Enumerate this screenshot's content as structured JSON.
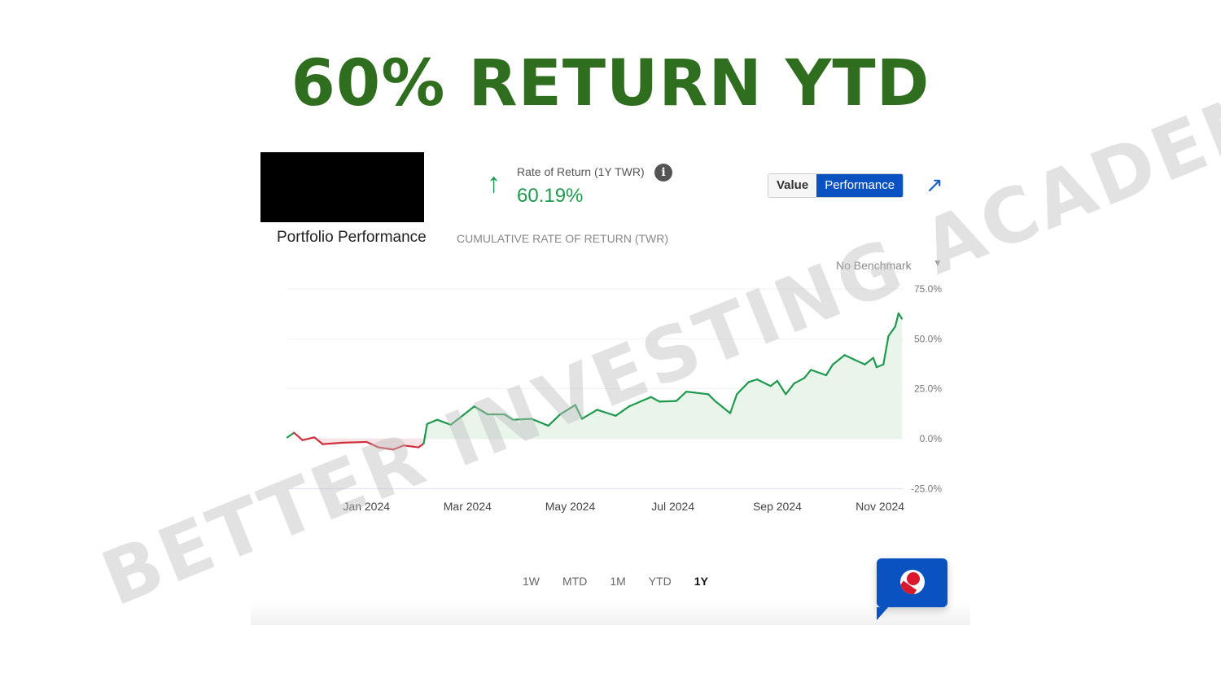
{
  "headline": "60% RETURN YTD",
  "header": {
    "rate_label": "Rate of Return (1Y TWR)",
    "info_icon": "i",
    "rate_value": "60.19%",
    "up_arrow": "↑",
    "toggle": {
      "value": "Value",
      "performance": "Performance",
      "active": "Performance"
    },
    "expand_icon": "↗"
  },
  "section": {
    "title": "Portfolio Performance",
    "subtitle": "CUMULATIVE RATE OF RETURN (TWR)",
    "benchmark": "No Benchmark",
    "benchmark_caret": "▼"
  },
  "ranges": [
    {
      "label": "1W",
      "active": false
    },
    {
      "label": "MTD",
      "active": false
    },
    {
      "label": "1M",
      "active": false
    },
    {
      "label": "YTD",
      "active": false
    },
    {
      "label": "1Y",
      "active": true
    }
  ],
  "watermark": "BETTER INVESTING ACADEMY",
  "colors": {
    "headline": "#2f6e1e",
    "positive": "#1f9a4d",
    "negative": "#d0313d",
    "accent": "#0a52c0"
  },
  "chart_data": {
    "type": "area",
    "title": "",
    "xlabel": "",
    "ylabel": "",
    "grid": true,
    "xlim": [
      "2023-11-15",
      "2024-11-14"
    ],
    "ylim": [
      -25,
      75
    ],
    "yticks": [
      75,
      50,
      25,
      0,
      -25
    ],
    "ytick_labels": [
      "75.0%",
      "50.0%",
      "25.0%",
      "0.0%",
      "-25.0%"
    ],
    "xticks": [
      "2024-01-01",
      "2024-03-01",
      "2024-05-01",
      "2024-07-01",
      "2024-09-01",
      "2024-11-01"
    ],
    "xtick_labels": [
      "Jan 2024",
      "Mar 2024",
      "May 2024",
      "Jul 2024",
      "Sep 2024",
      "Nov 2024"
    ],
    "series": [
      {
        "points": [
          [
            "2023-11-15",
            0.7
          ],
          [
            "2023-11-19",
            3.0
          ],
          [
            "2023-11-24",
            -0.7
          ],
          [
            "2023-12-01",
            0.7
          ],
          [
            "2023-12-06",
            -2.7
          ],
          [
            "2023-12-18",
            -2.0
          ],
          [
            "2024-01-01",
            -1.6
          ],
          [
            "2024-01-08",
            -4.3
          ],
          [
            "2024-01-17",
            -5.4
          ],
          [
            "2024-01-23",
            -3.4
          ],
          [
            "2024-02-01",
            -4.3
          ],
          [
            "2024-02-04",
            -2.4
          ],
          [
            "2024-02-06",
            7.4
          ],
          [
            "2024-02-12",
            9.5
          ],
          [
            "2024-02-20",
            7.0
          ],
          [
            "2024-02-27",
            11.5
          ],
          [
            "2024-03-05",
            16.2
          ],
          [
            "2024-03-13",
            12.2
          ],
          [
            "2024-03-23",
            12.2
          ],
          [
            "2024-03-28",
            9.5
          ],
          [
            "2024-04-08",
            10.0
          ],
          [
            "2024-04-18",
            6.5
          ],
          [
            "2024-04-25",
            12.2
          ],
          [
            "2024-05-04",
            16.9
          ],
          [
            "2024-05-08",
            10.0
          ],
          [
            "2024-05-17",
            14.5
          ],
          [
            "2024-05-28",
            11.5
          ],
          [
            "2024-06-05",
            16.2
          ],
          [
            "2024-06-18",
            20.9
          ],
          [
            "2024-06-23",
            18.6
          ],
          [
            "2024-07-03",
            18.9
          ],
          [
            "2024-07-09",
            23.6
          ],
          [
            "2024-07-22",
            22.3
          ],
          [
            "2024-07-26",
            18.9
          ],
          [
            "2024-08-04",
            12.8
          ],
          [
            "2024-08-08",
            22.3
          ],
          [
            "2024-08-15",
            28.4
          ],
          [
            "2024-08-20",
            29.7
          ],
          [
            "2024-08-28",
            26.4
          ],
          [
            "2024-09-01",
            29.0
          ],
          [
            "2024-09-06",
            22.3
          ],
          [
            "2024-09-11",
            27.7
          ],
          [
            "2024-09-17",
            30.4
          ],
          [
            "2024-09-21",
            34.5
          ],
          [
            "2024-09-30",
            31.8
          ],
          [
            "2024-10-04",
            37.2
          ],
          [
            "2024-10-11",
            41.9
          ],
          [
            "2024-10-16",
            39.9
          ],
          [
            "2024-10-23",
            37.2
          ],
          [
            "2024-10-28",
            40.5
          ],
          [
            "2024-10-30",
            35.8
          ],
          [
            "2024-11-03",
            37.2
          ],
          [
            "2024-11-06",
            51.4
          ],
          [
            "2024-11-10",
            56.1
          ],
          [
            "2024-11-12",
            62.8
          ],
          [
            "2024-11-14",
            60.1
          ]
        ]
      }
    ]
  }
}
